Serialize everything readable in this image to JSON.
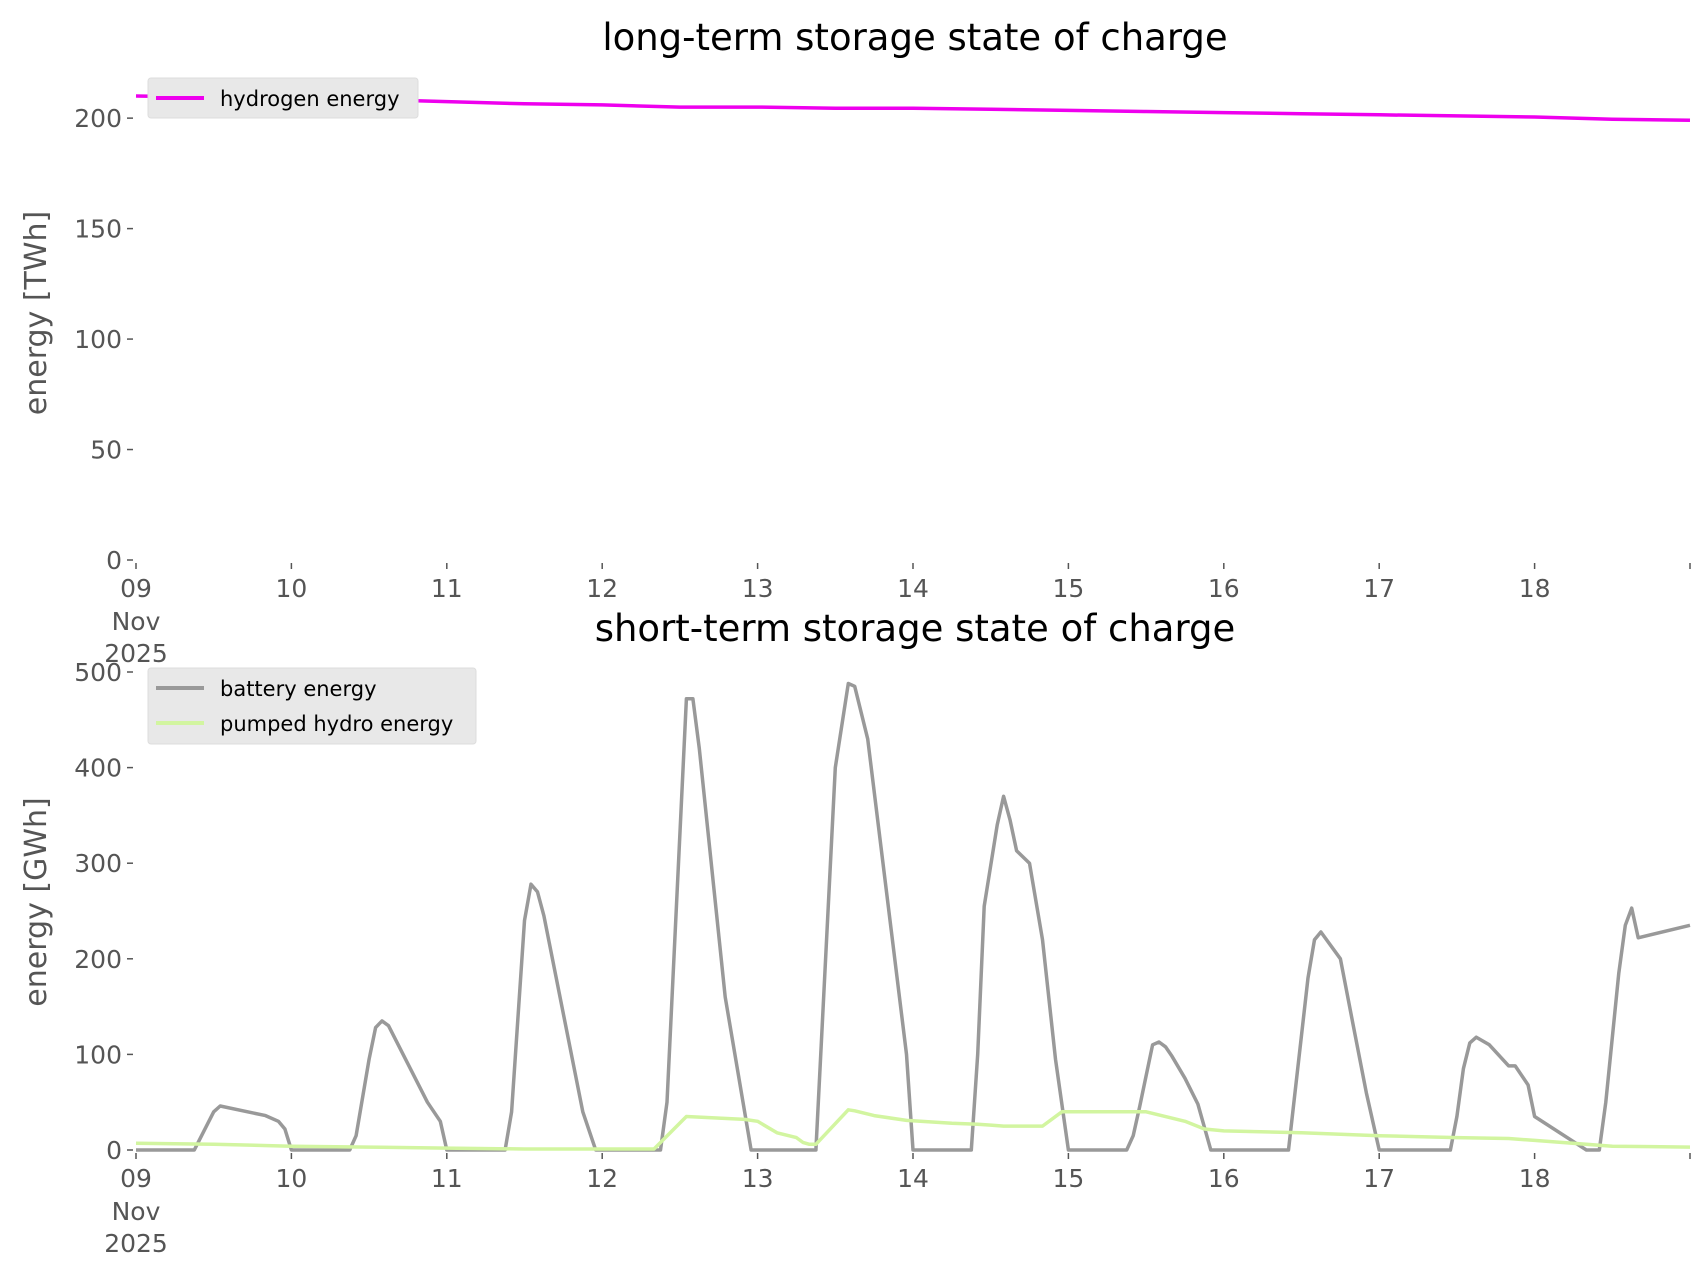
{
  "colors": {
    "hydrogen": "#ee00ee",
    "battery": "#999999",
    "pumped_hydro": "#d2f5a0",
    "legend_bg": "#e8e8e8",
    "tick_text": "#555555"
  },
  "chart_data": [
    {
      "type": "line",
      "title": "long-term storage state of charge",
      "xlabel": "",
      "ylabel": "energy [TWh]",
      "xlim": [
        "2025-11-09",
        "2025-11-19"
      ],
      "ylim": [
        0,
        215
      ],
      "grid": false,
      "legend_position": "top-left",
      "x_ticks": [
        "09",
        "10",
        "11",
        "12",
        "13",
        "14",
        "15",
        "16",
        "17",
        "18"
      ],
      "x_first_tick_extra": [
        "Nov",
        "2025"
      ],
      "y_ticks": [
        "0",
        "50",
        "100",
        "150",
        "200"
      ],
      "series": [
        {
          "name": "hydrogen energy",
          "color": "#ee00ee",
          "x": [
            "2025-11-09 00:00",
            "2025-11-09 12:00",
            "2025-11-10 00:00",
            "2025-11-10 12:00",
            "2025-11-11 00:00",
            "2025-11-11 12:00",
            "2025-11-12 00:00",
            "2025-11-12 12:00",
            "2025-11-13 00:00",
            "2025-11-13 12:00",
            "2025-11-14 00:00",
            "2025-11-14 12:00",
            "2025-11-15 00:00",
            "2025-11-15 12:00",
            "2025-11-16 00:00",
            "2025-11-16 12:00",
            "2025-11-17 00:00",
            "2025-11-17 12:00",
            "2025-11-18 00:00",
            "2025-11-18 12:00",
            "2025-11-19 00:00"
          ],
          "values": [
            210,
            209.5,
            209,
            208.5,
            207.5,
            206.5,
            206,
            205,
            205,
            204.5,
            204.5,
            204,
            203.5,
            203,
            202.5,
            202,
            201.5,
            201,
            200.5,
            199.5,
            199
          ]
        }
      ]
    },
    {
      "type": "line",
      "title": "short-term storage state of charge",
      "xlabel": "",
      "ylabel": "energy [GWh]",
      "xlim": [
        "2025-11-09",
        "2025-11-19"
      ],
      "ylim": [
        0,
        500
      ],
      "grid": false,
      "legend_position": "top-left",
      "x_ticks": [
        "09",
        "10",
        "11",
        "12",
        "13",
        "14",
        "15",
        "16",
        "17",
        "18"
      ],
      "x_first_tick_extra": [
        "Nov",
        "2025"
      ],
      "y_ticks": [
        "0",
        "100",
        "200",
        "300",
        "400",
        "500"
      ],
      "series": [
        {
          "name": "battery energy",
          "color": "#999999",
          "x": [
            "2025-11-09 00:00",
            "2025-11-09 09:00",
            "2025-11-09 12:00",
            "2025-11-09 13:00",
            "2025-11-09 20:00",
            "2025-11-09 22:00",
            "2025-11-09 23:00",
            "2025-11-10 00:00",
            "2025-11-10 09:00",
            "2025-11-10 10:00",
            "2025-11-10 12:00",
            "2025-11-10 13:00",
            "2025-11-10 14:00",
            "2025-11-10 15:00",
            "2025-11-10 21:00",
            "2025-11-10 23:00",
            "2025-11-11 00:00",
            "2025-11-11 09:00",
            "2025-11-11 10:00",
            "2025-11-11 12:00",
            "2025-11-11 13:00",
            "2025-11-11 14:00",
            "2025-11-11 15:00",
            "2025-11-11 21:00",
            "2025-11-11 23:00",
            "2025-11-12 00:00",
            "2025-11-12 09:00",
            "2025-11-12 10:00",
            "2025-11-12 13:00",
            "2025-11-12 14:00",
            "2025-11-12 15:00",
            "2025-11-12 19:00",
            "2025-11-12 23:00",
            "2025-11-13 00:00",
            "2025-11-13 09:00",
            "2025-11-13 12:00",
            "2025-11-13 14:00",
            "2025-11-13 15:00",
            "2025-11-13 17:00",
            "2025-11-13 23:00",
            "2025-11-14 00:00",
            "2025-11-14 08:00",
            "2025-11-14 09:00",
            "2025-11-14 10:00",
            "2025-11-14 11:00",
            "2025-11-14 13:00",
            "2025-11-14 14:00",
            "2025-11-14 15:00",
            "2025-11-14 16:00",
            "2025-11-14 18:00",
            "2025-11-14 20:00",
            "2025-11-14 22:00",
            "2025-11-15 00:00",
            "2025-11-15 08:00",
            "2025-11-15 09:00",
            "2025-11-15 10:00",
            "2025-11-15 11:00",
            "2025-11-15 13:00",
            "2025-11-15 14:00",
            "2025-11-15 15:00",
            "2025-11-15 16:00",
            "2025-11-15 18:00",
            "2025-11-15 20:00",
            "2025-11-15 22:00",
            "2025-11-16 00:00",
            "2025-11-16 09:00",
            "2025-11-16 10:00",
            "2025-11-16 11:00",
            "2025-11-16 12:00",
            "2025-11-16 13:00",
            "2025-11-16 14:00",
            "2025-11-16 15:00",
            "2025-11-16 18:00",
            "2025-11-16 20:00",
            "2025-11-16 22:00",
            "2025-11-17 00:00",
            "2025-11-17 09:00",
            "2025-11-17 10:00",
            "2025-11-17 11:00",
            "2025-11-17 12:00",
            "2025-11-17 13:00",
            "2025-11-17 14:00",
            "2025-11-17 15:00",
            "2025-11-17 17:00",
            "2025-11-17 20:00",
            "2025-11-17 21:00",
            "2025-11-17 23:00",
            "2025-11-18 00:00",
            "2025-11-18 08:00",
            "2025-11-18 09:00",
            "2025-11-18 10:00",
            "2025-11-18 11:00",
            "2025-11-18 13:00",
            "2025-11-18 14:00",
            "2025-11-18 15:00",
            "2025-11-18 16:00",
            "2025-11-19 00:00"
          ],
          "values": [
            0,
            0,
            40,
            46,
            36,
            30,
            22,
            0,
            0,
            15,
            95,
            128,
            135,
            130,
            50,
            30,
            0,
            0,
            40,
            240,
            278,
            270,
            245,
            40,
            0,
            0,
            0,
            50,
            472,
            472,
            420,
            160,
            0,
            0,
            0,
            400,
            488,
            485,
            430,
            100,
            0,
            0,
            0,
            100,
            255,
            340,
            370,
            345,
            313,
            300,
            220,
            95,
            0,
            0,
            0,
            15,
            45,
            110,
            113,
            108,
            98,
            75,
            48,
            0,
            0,
            0,
            0,
            60,
            120,
            180,
            220,
            228,
            200,
            130,
            60,
            0,
            0,
            0,
            0,
            35,
            85,
            112,
            118,
            110,
            88,
            88,
            68,
            35,
            0,
            0,
            0,
            50,
            185,
            235,
            253,
            222,
            235
          ]
        },
        {
          "name": "pumped hydro energy",
          "color": "#d2f5a0",
          "x": [
            "2025-11-09 00:00",
            "2025-11-09 12:00",
            "2025-11-10 00:00",
            "2025-11-10 12:00",
            "2025-11-11 00:00",
            "2025-11-11 12:00",
            "2025-11-12 00:00",
            "2025-11-12 08:00",
            "2025-11-12 13:00",
            "2025-11-12 22:00",
            "2025-11-13 00:00",
            "2025-11-13 03:00",
            "2025-11-13 06:00",
            "2025-11-13 07:00",
            "2025-11-13 08:00",
            "2025-11-13 09:00",
            "2025-11-13 14:00",
            "2025-11-13 15:00",
            "2025-11-13 18:00",
            "2025-11-13 23:00",
            "2025-11-14 06:00",
            "2025-11-14 10:00",
            "2025-11-14 12:00",
            "2025-11-14 14:00",
            "2025-11-14 20:00",
            "2025-11-14 23:00",
            "2025-11-15 03:00",
            "2025-11-15 12:00",
            "2025-11-15 18:00",
            "2025-11-15 21:00",
            "2025-11-16 00:00",
            "2025-11-16 12:00",
            "2025-11-17 00:00",
            "2025-11-17 12:00",
            "2025-11-17 20:00",
            "2025-11-18 00:00",
            "2025-11-18 12:00",
            "2025-11-19 00:00"
          ],
          "values": [
            7,
            6,
            4,
            3,
            2,
            1,
            1,
            1,
            35,
            32,
            30,
            18,
            13,
            8,
            6,
            6,
            42,
            41,
            36,
            31,
            28,
            27,
            26,
            25,
            25,
            40,
            40,
            40,
            30,
            22,
            20,
            18,
            15,
            13,
            12,
            10,
            4,
            3
          ]
        }
      ]
    }
  ]
}
